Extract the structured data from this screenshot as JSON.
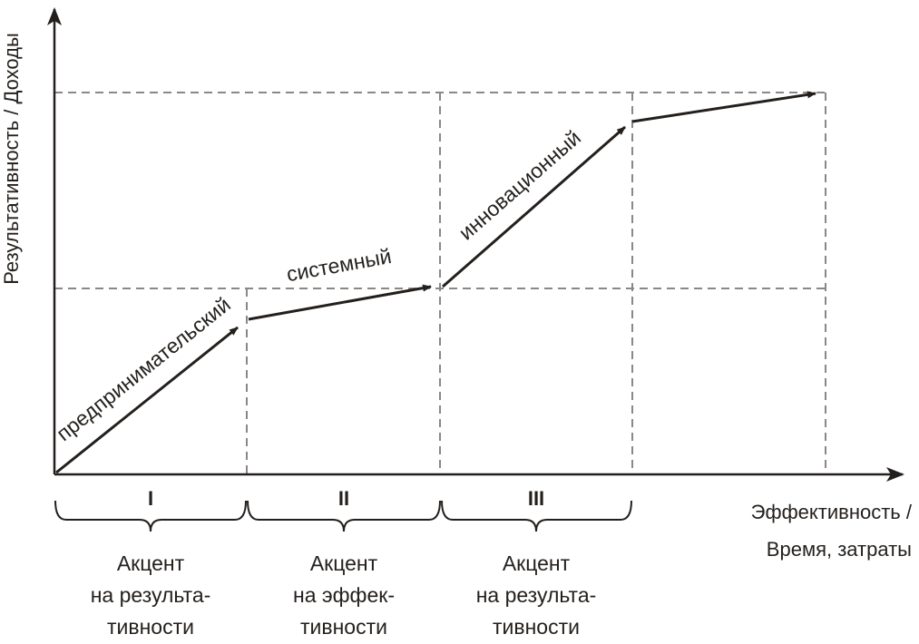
{
  "axes": {
    "y_label": "Результативность / Доходы",
    "x_label_line1": "Эффективность /",
    "x_label_line2": "Время, затраты"
  },
  "segments": [
    {
      "label": "предпринимательский"
    },
    {
      "label": "системный"
    },
    {
      "label": "инновационный"
    },
    {
      "label": ""
    }
  ],
  "stages": [
    {
      "numeral": "I",
      "line1": "Акцент",
      "line2": "на результа-",
      "line3": "тивности"
    },
    {
      "numeral": "II",
      "line1": "Акцент",
      "line2": "на эффек-",
      "line3": "тивности"
    },
    {
      "numeral": "III",
      "line1": "Акцент",
      "line2": "на результа-",
      "line3": "тивности"
    }
  ],
  "colors": {
    "ink": "#231f1c",
    "grid": "#8a8886"
  }
}
